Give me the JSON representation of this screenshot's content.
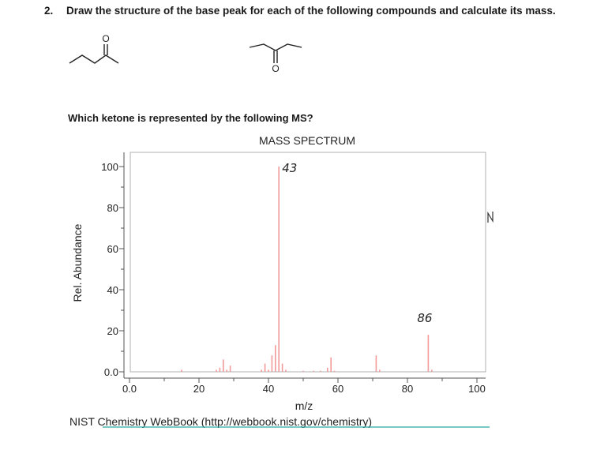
{
  "question": {
    "number": "2.",
    "text": "Draw the structure of the base peak for each of the following compounds and calculate its mass."
  },
  "molecules": [
    {
      "atom_label": "O"
    },
    {
      "atom_label": "O"
    }
  ],
  "subquestion": "Which ketone is represented by the following MS?",
  "chart_data": {
    "type": "bar",
    "title": "MASS SPECTRUM",
    "xlabel": "m/z",
    "ylabel": "Rel. Abundance",
    "xlim": [
      0,
      100
    ],
    "ylim": [
      0,
      100
    ],
    "xticks": [
      "0.0",
      "20",
      "40",
      "60",
      "80",
      "100"
    ],
    "yticks": [
      "0.0",
      "20",
      "40",
      "60",
      "80",
      "100"
    ],
    "peaks": [
      {
        "x": 15,
        "y": 1
      },
      {
        "x": 25,
        "y": 1
      },
      {
        "x": 26,
        "y": 2
      },
      {
        "x": 27,
        "y": 6
      },
      {
        "x": 28,
        "y": 1
      },
      {
        "x": 29,
        "y": 3
      },
      {
        "x": 38,
        "y": 1
      },
      {
        "x": 39,
        "y": 4
      },
      {
        "x": 40,
        "y": 1
      },
      {
        "x": 41,
        "y": 8
      },
      {
        "x": 42,
        "y": 13
      },
      {
        "x": 43,
        "y": 100
      },
      {
        "x": 44,
        "y": 4
      },
      {
        "x": 45,
        "y": 1
      },
      {
        "x": 50,
        "y": 0.5
      },
      {
        "x": 53,
        "y": 0.5
      },
      {
        "x": 55,
        "y": 0.5
      },
      {
        "x": 57,
        "y": 2
      },
      {
        "x": 58,
        "y": 7
      },
      {
        "x": 59,
        "y": 0.5
      },
      {
        "x": 71,
        "y": 8
      },
      {
        "x": 72,
        "y": 1
      },
      {
        "x": 86,
        "y": 18
      },
      {
        "x": 87,
        "y": 1
      }
    ],
    "annotations": [
      {
        "text": "43",
        "x": 43
      },
      {
        "text": "86",
        "x": 86
      }
    ],
    "source": "NIST Chemistry WebBook (http://webbook.nist.gov/chemistry)"
  },
  "colors": {
    "peak": "#f39a9a",
    "axis": "#555555",
    "frame": "#b0b0b0",
    "link_underline": "#2aa7a0"
  }
}
